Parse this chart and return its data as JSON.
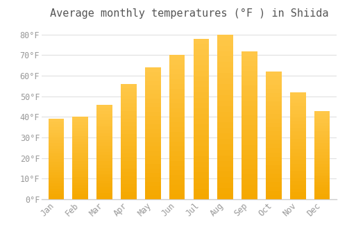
{
  "title": "Average monthly temperatures (°F ) in Shiida",
  "months": [
    "Jan",
    "Feb",
    "Mar",
    "Apr",
    "May",
    "Jun",
    "Jul",
    "Aug",
    "Sep",
    "Oct",
    "Nov",
    "Dec"
  ],
  "values": [
    39,
    40,
    46,
    56,
    64,
    70,
    78,
    80,
    72,
    62,
    52,
    43
  ],
  "bar_color_top": "#FFC84A",
  "bar_color_bottom": "#F5A800",
  "background_color": "#FFFFFF",
  "grid_color": "#E0E0E0",
  "ylim": [
    0,
    85
  ],
  "yticks": [
    0,
    10,
    20,
    30,
    40,
    50,
    60,
    70,
    80
  ],
  "title_fontsize": 11,
  "tick_fontsize": 8.5,
  "tick_color": "#999999",
  "title_color": "#555555",
  "bar_width": 0.65
}
